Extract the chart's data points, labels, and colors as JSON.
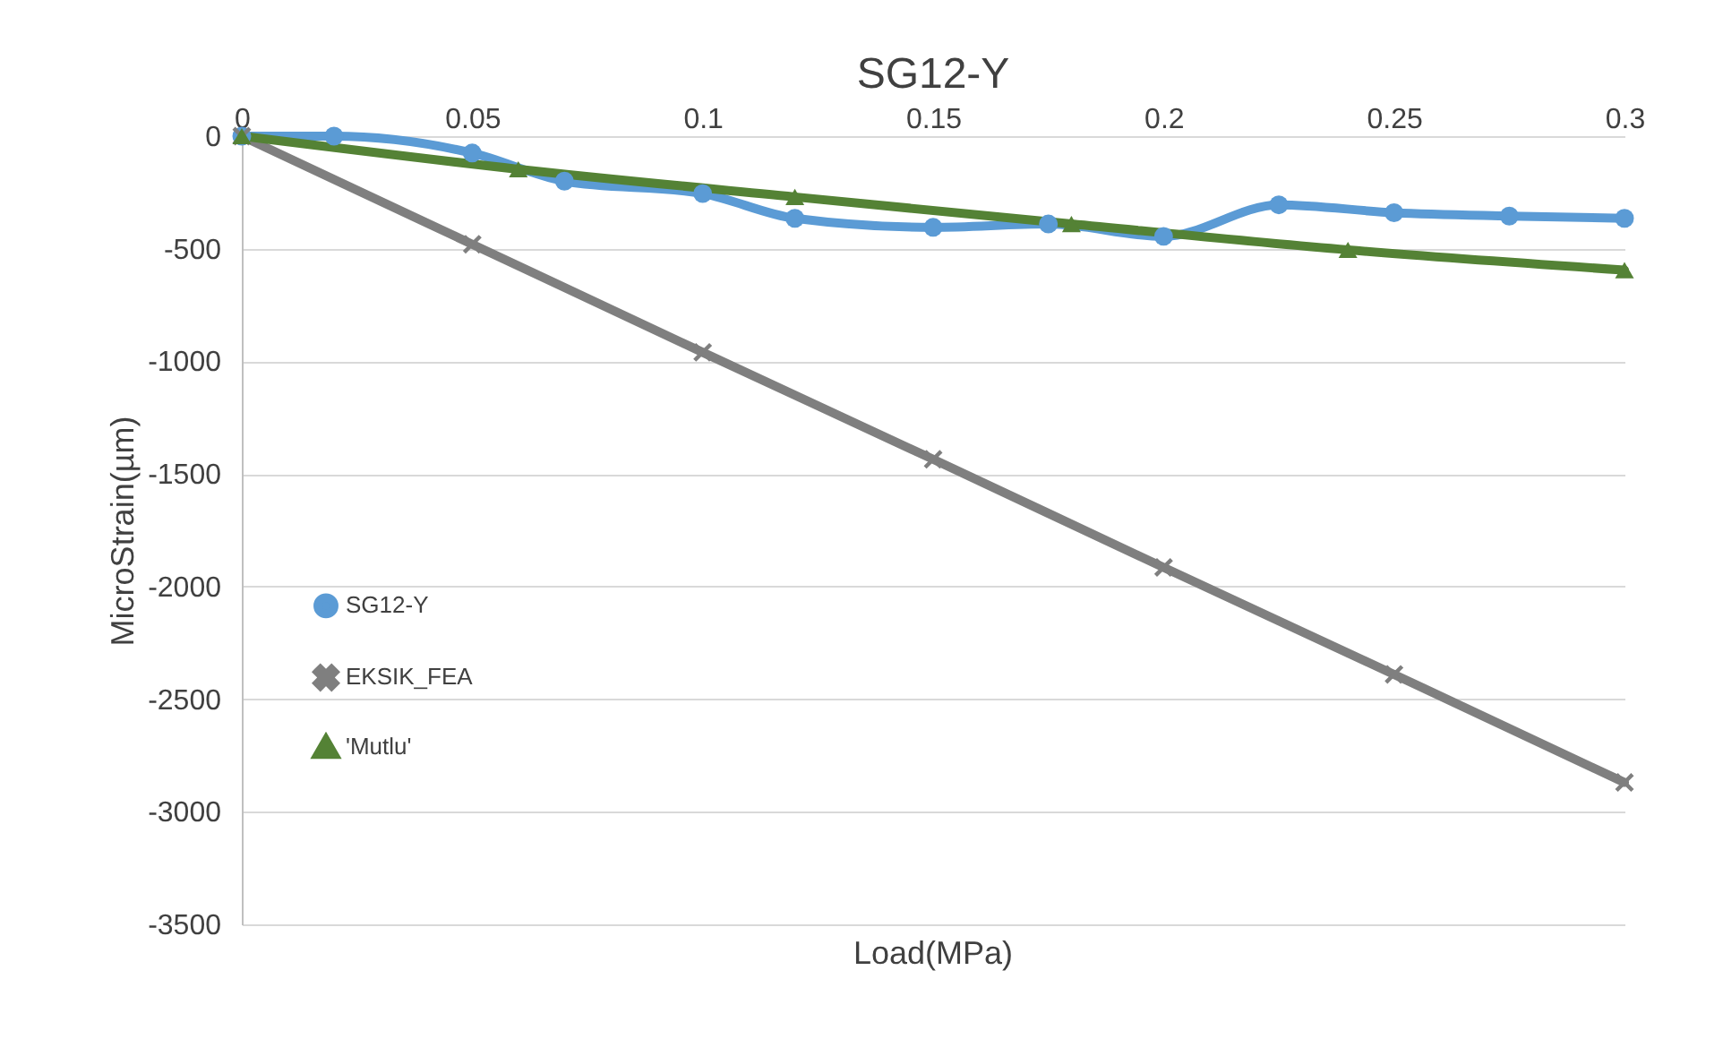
{
  "chart_data": {
    "type": "line",
    "title": "SG12-Y",
    "xlabel": "Load(MPa)",
    "ylabel": "MicroStrain(µm)",
    "xlim": [
      0,
      0.3
    ],
    "xticks": [
      0,
      0.05,
      0.1,
      0.15,
      0.2,
      0.25,
      0.3
    ],
    "ylim": [
      -3500,
      0
    ],
    "yticks": [
      -3500,
      -3000,
      -2500,
      -2000,
      -1500,
      -1000,
      -500,
      0
    ],
    "grid": "y",
    "legend": "left",
    "line_style": "solid",
    "series": [
      {
        "name": "SG12-Y",
        "color": "#5b9bd5",
        "marker": "circle",
        "x": [
          0,
          0.02,
          0.05,
          0.07,
          0.1,
          0.12,
          0.15,
          0.175,
          0.2,
          0.225,
          0.25,
          0.275,
          0.3
        ],
        "values": [
          0,
          0,
          -75,
          -200,
          -255,
          -365,
          -405,
          -390,
          -445,
          -305,
          -340,
          -355,
          -365
        ]
      },
      {
        "name": "EKSIK_FEA",
        "color": "#7f7f7f",
        "marker": "cross",
        "x": [
          0,
          0.05,
          0.1,
          0.15,
          0.2,
          0.25,
          0.3
        ],
        "values": [
          0,
          -480,
          -960,
          -1435,
          -1915,
          -2390,
          -2870
        ]
      },
      {
        "name": "'Mutlu'",
        "color": "#548235",
        "marker": "triangle",
        "x": [
          0,
          0.06,
          0.12,
          0.18,
          0.24,
          0.3
        ],
        "values": [
          0,
          -147,
          -270,
          -390,
          -505,
          -595
        ]
      }
    ]
  }
}
